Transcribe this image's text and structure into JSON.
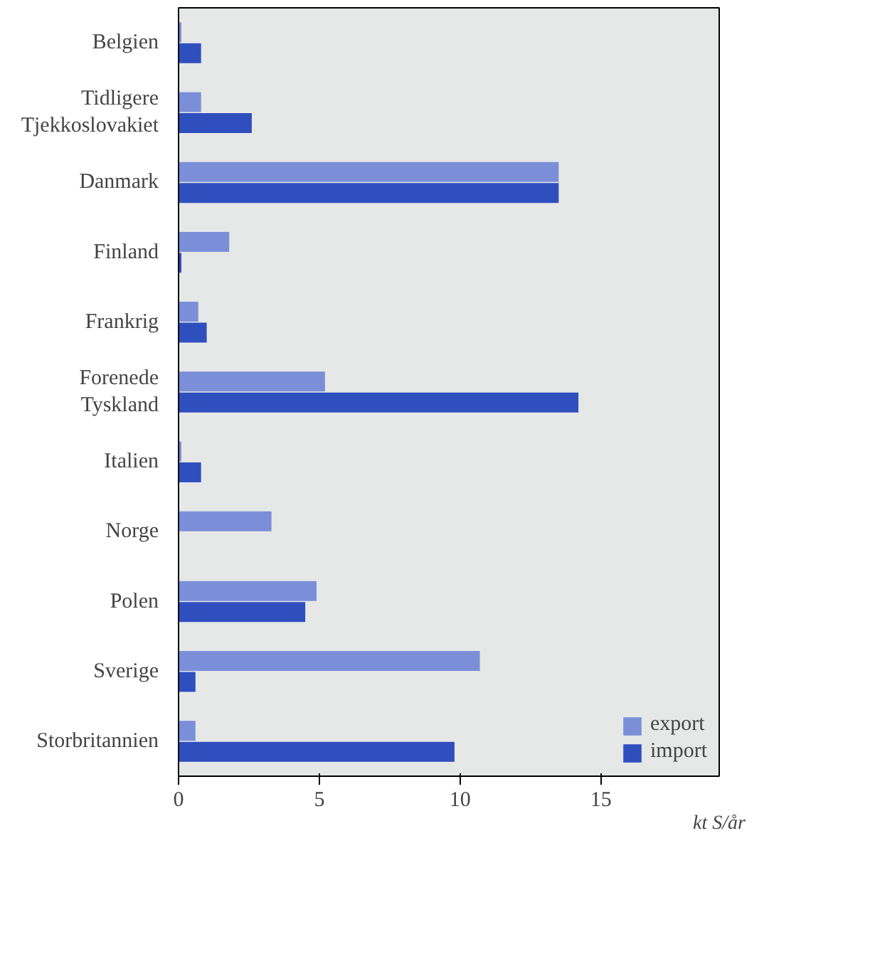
{
  "chart_data": {
    "type": "bar",
    "orientation": "horizontal",
    "categories": [
      "Belgien",
      "Tidligere\nTjekkoslovakiet",
      "Danmark",
      "Finland",
      "Frankrig",
      "Forenede\nTyskland",
      "Italien",
      "Norge",
      "Polen",
      "Sverige",
      "Storbritannien"
    ],
    "series": [
      {
        "name": "export",
        "color": "#7b8fd8",
        "values": [
          0.1,
          0.8,
          13.5,
          1.8,
          0.7,
          5.2,
          0.1,
          3.3,
          4.9,
          10.7,
          0.6
        ]
      },
      {
        "name": "import",
        "color": "#2f4fbf",
        "values": [
          0.8,
          2.6,
          13.5,
          0.1,
          1.0,
          14.2,
          0.8,
          0.0,
          4.5,
          0.6,
          9.8
        ]
      }
    ],
    "xlabel": "kt S/år",
    "xlim": [
      0,
      19.2
    ],
    "xticks": [
      0,
      5,
      10,
      15
    ],
    "grid": false,
    "legend": "bottom right"
  }
}
